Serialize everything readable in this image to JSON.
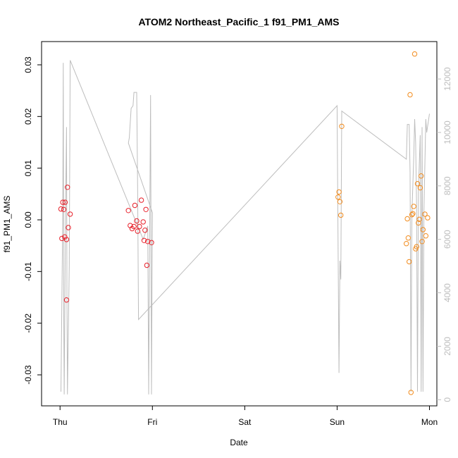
{
  "chart_data": {
    "type": "scatter",
    "title": "ATOM2 Northeast_Pacific_1 f91_PM1_AMS",
    "xlabel": "Date",
    "ylabel": "f91_PM1_AMS",
    "x_ticks": [
      {
        "value": 0,
        "label": "Thu"
      },
      {
        "value": 1,
        "label": "Fri"
      },
      {
        "value": 2,
        "label": "Sat"
      },
      {
        "value": 3,
        "label": "Sun"
      },
      {
        "value": 4,
        "label": "Mon"
      }
    ],
    "xlim": [
      -0.2,
      4.08
    ],
    "ylim": [
      -0.036,
      0.0345
    ],
    "y_ticks": [
      {
        "value": -0.03,
        "label": "-0.03"
      },
      {
        "value": -0.02,
        "label": "-0.02"
      },
      {
        "value": -0.01,
        "label": "-0.01"
      },
      {
        "value": 0.0,
        "label": "0.00"
      },
      {
        "value": 0.01,
        "label": "0.01"
      },
      {
        "value": 0.02,
        "label": "0.02"
      },
      {
        "value": 0.03,
        "label": "0.03"
      }
    ],
    "y2lim": [
      -230,
      13400
    ],
    "y2_ticks": [
      {
        "value": 0,
        "label": "0"
      },
      {
        "value": 2000,
        "label": "2000"
      },
      {
        "value": 4000,
        "label": "4000"
      },
      {
        "value": 6000,
        "label": "6000"
      },
      {
        "value": 8000,
        "label": "8000"
      },
      {
        "value": 10000,
        "label": "10000"
      },
      {
        "value": 12000,
        "label": "12000"
      }
    ],
    "series": [
      {
        "color": "#e8202a",
        "marker": "open-circle",
        "axis": "left",
        "points": [
          [
            0.01,
            0.0021
          ],
          [
            0.02,
            -0.0036
          ],
          [
            0.03,
            0.0034
          ],
          [
            0.04,
            0.002
          ],
          [
            0.05,
            -0.0033
          ],
          [
            0.055,
            0.0034
          ],
          [
            0.07,
            -0.0038
          ],
          [
            0.07,
            -0.0155
          ],
          [
            0.08,
            0.0063
          ],
          [
            0.09,
            -0.0015
          ],
          [
            0.11,
            0.0011
          ],
          [
            0.74,
            0.0018
          ],
          [
            0.76,
            -0.0011
          ],
          [
            0.78,
            -0.0017
          ],
          [
            0.8,
            -0.0013
          ],
          [
            0.81,
            0.0028
          ],
          [
            0.83,
            -0.0002
          ],
          [
            0.84,
            -0.0022
          ],
          [
            0.86,
            -0.0013
          ],
          [
            0.88,
            0.0038
          ],
          [
            0.9,
            -0.0004
          ],
          [
            0.91,
            -0.004
          ],
          [
            0.92,
            -0.002
          ],
          [
            0.93,
            0.002
          ],
          [
            0.94,
            -0.0088
          ],
          [
            0.95,
            -0.0042
          ],
          [
            0.99,
            -0.0044
          ]
        ]
      },
      {
        "color": "#f28c1e",
        "marker": "open-circle",
        "axis": "left",
        "points": [
          [
            3.01,
            0.0044
          ],
          [
            3.02,
            0.0054
          ],
          [
            3.03,
            0.0035
          ],
          [
            3.04,
            0.0009
          ],
          [
            3.05,
            0.0181
          ],
          [
            3.75,
            -0.0046
          ],
          [
            3.76,
            0.0002
          ],
          [
            3.77,
            -0.0035
          ],
          [
            3.78,
            -0.0081
          ],
          [
            3.79,
            0.0242
          ],
          [
            3.8,
            -0.0334
          ],
          [
            3.81,
            0.001
          ],
          [
            3.82,
            0.0012
          ],
          [
            3.83,
            0.0026
          ],
          [
            3.84,
            0.0321
          ],
          [
            3.85,
            -0.0056
          ],
          [
            3.86,
            -0.0052
          ],
          [
            3.87,
            0.007
          ],
          [
            3.88,
            -0.0006
          ],
          [
            3.89,
            0.0001
          ],
          [
            3.9,
            0.0062
          ],
          [
            3.91,
            0.0085
          ],
          [
            3.92,
            -0.0042
          ],
          [
            3.93,
            -0.0019
          ],
          [
            3.95,
            0.0011
          ],
          [
            3.96,
            -0.0031
          ],
          [
            3.98,
            0.0004
          ]
        ]
      },
      {
        "color": "#bdbdbd",
        "marker": "line",
        "axis": "right",
        "points": [
          [
            0.01,
            300
          ],
          [
            0.03,
            7000
          ],
          [
            0.035,
            12600
          ],
          [
            0.04,
            3000
          ],
          [
            0.045,
            200
          ],
          [
            0.06,
            7300
          ],
          [
            0.07,
            10200
          ],
          [
            0.075,
            4000
          ],
          [
            0.08,
            200
          ],
          [
            0.1,
            5000
          ],
          [
            0.11,
            12700
          ],
          [
            0.9,
            6000
          ],
          [
            0.95,
            6500
          ],
          [
            0.96,
            200
          ],
          [
            0.98,
            11400
          ],
          [
            0.99,
            200
          ],
          [
            1.0,
            7000
          ],
          [
            0.74,
            9600
          ],
          [
            0.75,
            9800
          ],
          [
            0.77,
            10900
          ],
          [
            0.79,
            11000
          ],
          [
            0.8,
            11500
          ],
          [
            0.83,
            11500
          ],
          [
            0.84,
            8000
          ],
          [
            0.85,
            3000
          ],
          [
            3.0,
            11000
          ],
          [
            3.02,
            1000
          ],
          [
            3.03,
            5200
          ],
          [
            3.04,
            4500
          ],
          [
            3.05,
            10800
          ],
          [
            3.75,
            9000
          ],
          [
            3.76,
            10300
          ],
          [
            3.78,
            10300
          ],
          [
            3.79,
            8500
          ],
          [
            3.8,
            300
          ],
          [
            3.81,
            7000
          ],
          [
            3.82,
            8000
          ],
          [
            3.83,
            9100
          ],
          [
            3.84,
            10500
          ],
          [
            3.85,
            9600
          ],
          [
            3.86,
            7300
          ],
          [
            3.87,
            300
          ],
          [
            3.88,
            7800
          ],
          [
            3.9,
            9900
          ],
          [
            3.91,
            300
          ],
          [
            3.92,
            10200
          ],
          [
            3.93,
            300
          ],
          [
            3.94,
            7000
          ],
          [
            3.96,
            10500
          ],
          [
            3.97,
            10000
          ],
          [
            4.0,
            10700
          ]
        ]
      }
    ]
  }
}
